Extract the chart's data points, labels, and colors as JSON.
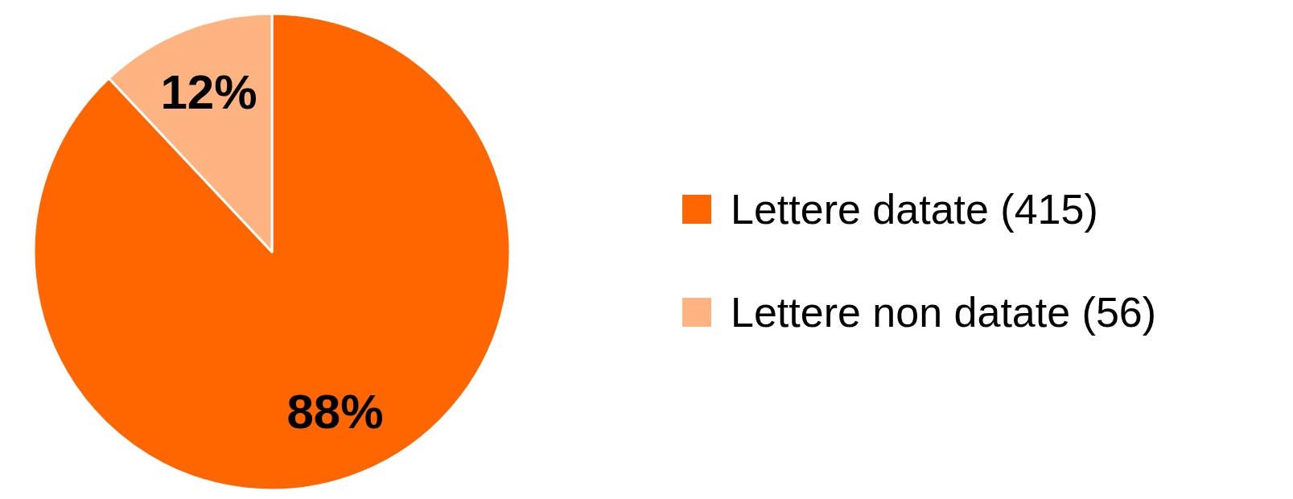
{
  "chart_data": {
    "type": "pie",
    "categories": [
      "Lettere datate (415)",
      "Lettere non datate (56)"
    ],
    "values": [
      88,
      12
    ],
    "value_labels": [
      "88%",
      "12%"
    ],
    "colors": [
      "#ff6600",
      "#ffb380"
    ],
    "legend": "right"
  }
}
